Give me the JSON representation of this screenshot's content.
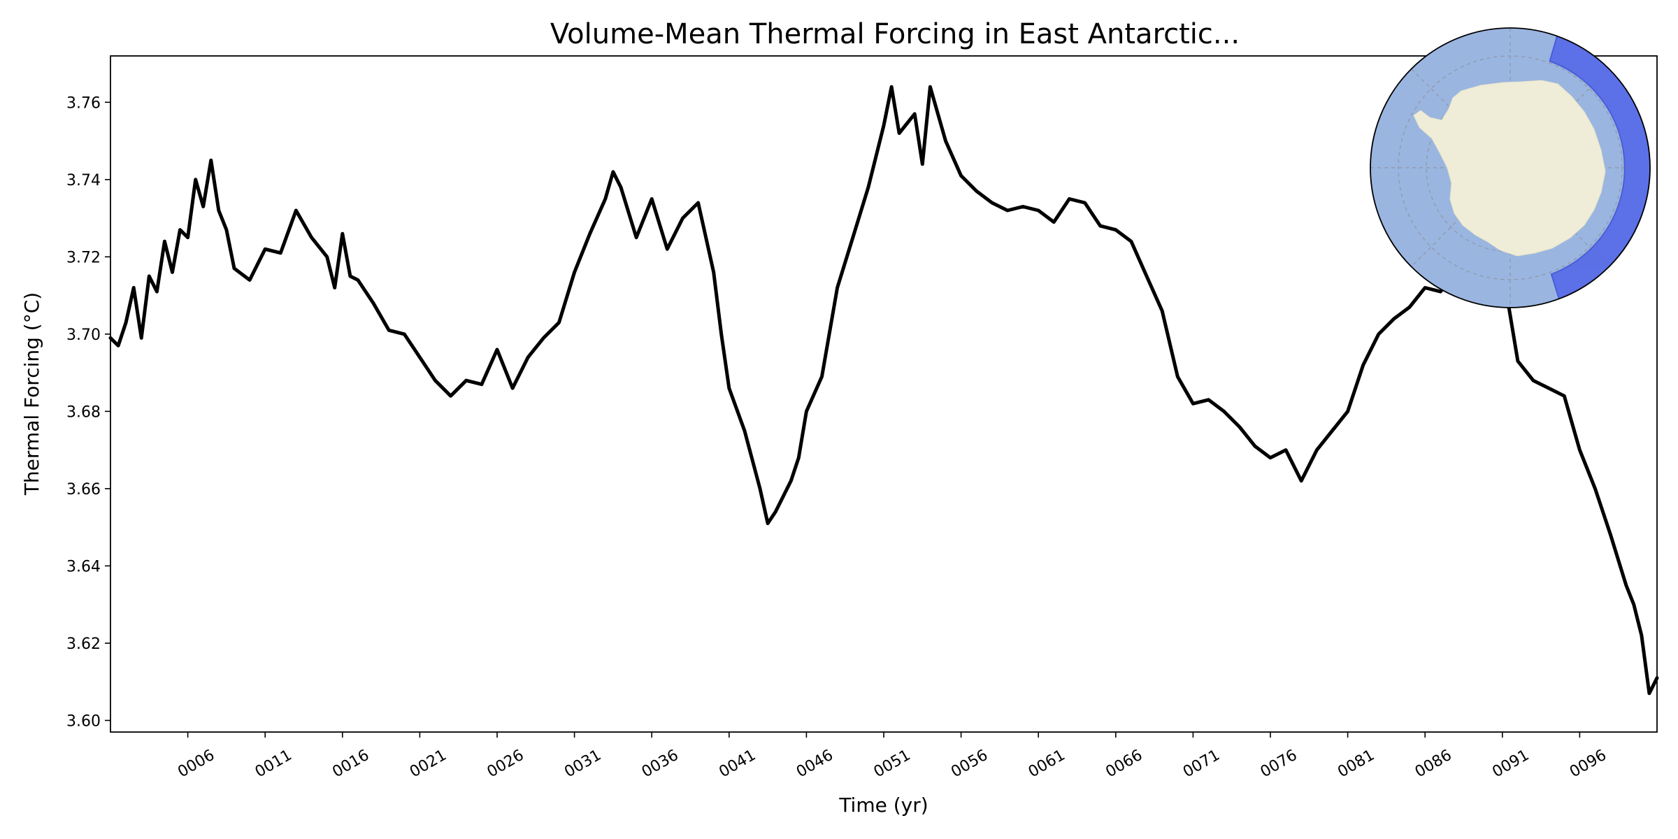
{
  "chart_data": {
    "type": "line",
    "title": "Volume-Mean Thermal Forcing in East Antarctic...",
    "xlabel": "Time (yr)",
    "ylabel": "Thermal Forcing ($^\\circ$C)",
    "ylabel_display": "Thermal Forcing (°C)",
    "xlim": [
      1,
      101
    ],
    "ylim": [
      3.597,
      3.772
    ],
    "x_ticks": [
      6,
      11,
      16,
      21,
      26,
      31,
      36,
      41,
      46,
      51,
      56,
      61,
      66,
      71,
      76,
      81,
      86,
      91,
      96
    ],
    "x_tick_labels": [
      "0006",
      "0011",
      "0016",
      "0021",
      "0026",
      "0031",
      "0036",
      "0041",
      "0046",
      "0051",
      "0056",
      "0061",
      "0066",
      "0071",
      "0076",
      "0081",
      "0086",
      "0091",
      "0096"
    ],
    "y_ticks": [
      3.6,
      3.62,
      3.64,
      3.66,
      3.68,
      3.7,
      3.72,
      3.74,
      3.76
    ],
    "y_tick_labels": [
      "3.60",
      "3.62",
      "3.64",
      "3.66",
      "3.68",
      "3.70",
      "3.72",
      "3.74",
      "3.76"
    ],
    "grid": false,
    "line_color": "#000000",
    "series": [
      {
        "name": "",
        "x": [
          1,
          1.5,
          2,
          2.5,
          3,
          3.5,
          4,
          4.5,
          5,
          5.5,
          6,
          6.5,
          7,
          7.5,
          8,
          8.5,
          9,
          10,
          11,
          12,
          13,
          14,
          15,
          15.5,
          16,
          16.5,
          17,
          18,
          19,
          20,
          21,
          22,
          23,
          24,
          25,
          26,
          27,
          28,
          29,
          30,
          31,
          32,
          33,
          33.5,
          34,
          35,
          36,
          37,
          38,
          39,
          40,
          40.5,
          41,
          42,
          43,
          43.5,
          44,
          45,
          45.5,
          46,
          47,
          48,
          49,
          50,
          51,
          51.5,
          52,
          53,
          53.5,
          54,
          55,
          56,
          57,
          58,
          59,
          60,
          61,
          62,
          63,
          64,
          65,
          66,
          67,
          68,
          69,
          70,
          71,
          72,
          73,
          74,
          75,
          76,
          77,
          78,
          79,
          80,
          81,
          82,
          83,
          84,
          85,
          86,
          87,
          88,
          89,
          90,
          91,
          92,
          93,
          94,
          95,
          96,
          97,
          98,
          99,
          99.5,
          100,
          100.5,
          101
        ],
        "y": [
          3.699,
          3.697,
          3.703,
          3.712,
          3.699,
          3.715,
          3.711,
          3.724,
          3.716,
          3.727,
          3.725,
          3.74,
          3.733,
          3.745,
          3.732,
          3.727,
          3.717,
          3.714,
          3.722,
          3.721,
          3.732,
          3.725,
          3.72,
          3.712,
          3.726,
          3.715,
          3.714,
          3.708,
          3.701,
          3.7,
          3.694,
          3.688,
          3.684,
          3.688,
          3.687,
          3.696,
          3.686,
          3.694,
          3.699,
          3.703,
          3.716,
          3.726,
          3.735,
          3.742,
          3.738,
          3.725,
          3.735,
          3.722,
          3.73,
          3.734,
          3.716,
          3.7,
          3.686,
          3.675,
          3.66,
          3.651,
          3.654,
          3.662,
          3.668,
          3.68,
          3.689,
          3.712,
          3.725,
          3.738,
          3.754,
          3.764,
          3.752,
          3.757,
          3.744,
          3.764,
          3.75,
          3.741,
          3.737,
          3.734,
          3.732,
          3.733,
          3.732,
          3.729,
          3.735,
          3.734,
          3.728,
          3.727,
          3.724,
          3.715,
          3.706,
          3.689,
          3.682,
          3.683,
          3.68,
          3.676,
          3.671,
          3.668,
          3.67,
          3.662,
          3.67,
          3.675,
          3.68,
          3.692,
          3.7,
          3.704,
          3.707,
          3.712,
          3.711,
          3.716,
          3.718,
          3.721,
          3.717,
          3.693,
          3.688,
          3.686,
          3.684,
          3.67,
          3.66,
          3.648,
          3.635,
          3.63,
          3.622,
          3.607,
          3.611
        ],
        "color": "#000000"
      }
    ]
  },
  "inset_map": {
    "name": "south-polar-map",
    "ocean_color": "#9ab5e0",
    "land_color": "#efedd8",
    "region_color": "#5264e8"
  }
}
